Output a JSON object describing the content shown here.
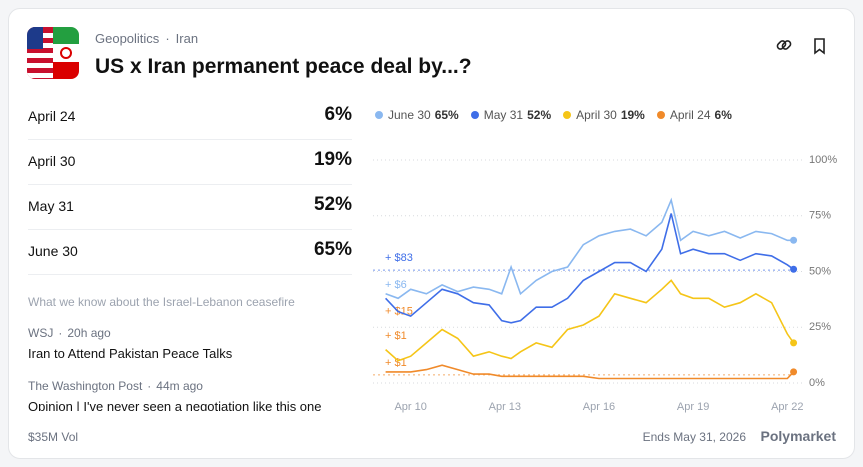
{
  "breadcrumb": {
    "category": "Geopolitics",
    "separator": "·",
    "tag": "Iran"
  },
  "title": "US x Iran permanent peace deal by...?",
  "outcomes": [
    {
      "label": "April 24",
      "percent": "6%"
    },
    {
      "label": "April 30",
      "percent": "19%"
    },
    {
      "label": "May 31",
      "percent": "52%"
    },
    {
      "label": "June 30",
      "percent": "65%"
    }
  ],
  "news": {
    "headline": "What we know about the Israel-Lebanon ceasefire",
    "items": [
      {
        "source": "WSJ",
        "time": "20h ago",
        "title": "Iran to Attend Pakistan Peace Talks"
      },
      {
        "source": "The Washington Post",
        "time": "44m ago",
        "title": "Opinion | I've never seen a negotiation like this one"
      }
    ]
  },
  "footer": {
    "volume": "$35M Vol",
    "ends": "Ends May 31, 2026",
    "brand": "Polymarket"
  },
  "chart_data": {
    "type": "line",
    "x": [
      9.2,
      9.6,
      10,
      10.5,
      11,
      11.5,
      12,
      12.5,
      12.9,
      13.2,
      13.5,
      14,
      14.5,
      15,
      15.5,
      16,
      16.5,
      17,
      17.5,
      18,
      18.3,
      18.6,
      19,
      19.5,
      20,
      20.5,
      21,
      21.5,
      22,
      22.2
    ],
    "xlim": [
      8.8,
      22.5
    ],
    "xticks": [
      {
        "value": 10,
        "label": "Apr 10"
      },
      {
        "value": 13,
        "label": "Apr 13"
      },
      {
        "value": 16,
        "label": "Apr 16"
      },
      {
        "value": 19,
        "label": "Apr 19"
      },
      {
        "value": 22,
        "label": "Apr 22"
      }
    ],
    "ylim": [
      0,
      100
    ],
    "yticks": [
      {
        "value": 0,
        "label": "0%"
      },
      {
        "value": 25,
        "label": "25%"
      },
      {
        "value": 50,
        "label": "50%"
      },
      {
        "value": 75,
        "label": "75%"
      },
      {
        "value": 100,
        "label": "100%"
      }
    ],
    "grid": true,
    "series": [
      {
        "name": "June 30",
        "outcome": 3,
        "color": "#8ab8f0",
        "values": [
          40,
          38,
          42,
          40,
          44,
          41,
          43,
          42,
          40,
          52,
          40,
          46,
          50,
          52,
          62,
          66,
          68,
          69,
          66,
          72,
          82,
          64,
          68,
          66,
          68,
          65,
          68,
          67,
          64,
          64
        ]
      },
      {
        "name": "May 31",
        "outcome": 2,
        "color": "#3f6ee8",
        "values": [
          38,
          32,
          30,
          36,
          42,
          40,
          36,
          35,
          28,
          27,
          28,
          34,
          34,
          38,
          46,
          50,
          54,
          54,
          50,
          60,
          76,
          58,
          60,
          58,
          58,
          55,
          58,
          57,
          53,
          51
        ]
      },
      {
        "name": "April 30",
        "outcome": 1,
        "color": "#f5c518",
        "values": [
          15,
          10,
          12,
          18,
          24,
          20,
          12,
          14,
          12,
          11,
          14,
          18,
          16,
          24,
          26,
          30,
          40,
          38,
          36,
          42,
          46,
          40,
          38,
          38,
          34,
          36,
          40,
          36,
          22,
          18
        ]
      },
      {
        "name": "April 24",
        "outcome": 0,
        "color": "#f08a2a",
        "values": [
          5,
          5,
          5,
          6,
          8,
          6,
          4,
          4,
          3,
          3,
          3,
          3,
          3,
          3,
          3,
          2,
          2,
          2,
          2,
          2,
          2,
          2,
          2,
          2,
          2,
          2,
          2,
          2,
          2,
          5
        ]
      }
    ],
    "annotations": [
      {
        "text": "+ $83",
        "y": 56,
        "color": "#3f6ee8",
        "line": true
      },
      {
        "text": "+ $6",
        "y": 44,
        "color": "#8ab8f0",
        "line": false
      },
      {
        "text": "+ $15",
        "y": 32,
        "color": "#f08a2a",
        "line": false
      },
      {
        "text": "+ $1",
        "y": 21,
        "color": "#f08a2a",
        "line": false
      },
      {
        "text": "+ $1",
        "y": 9,
        "color": "#f08a2a",
        "line": true
      }
    ]
  }
}
